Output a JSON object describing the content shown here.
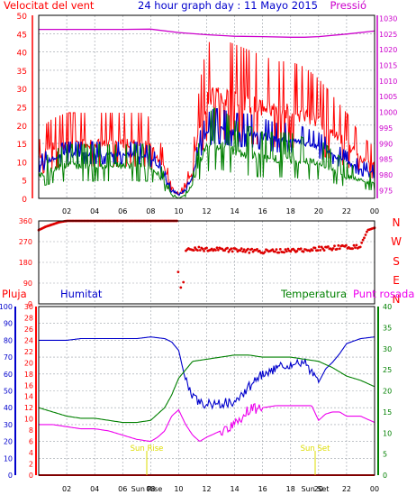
{
  "titles": {
    "left": "Velocitat del vent",
    "center": "24 hour graph day : 11 Mayo 2015",
    "right": "Pressió"
  },
  "second_panel": {
    "direction_labels": [
      "N",
      "W",
      "S",
      "E",
      "N"
    ]
  },
  "lower_headers": {
    "rain": "Pluja",
    "humidity": "Humitat",
    "temperature": "Temperatura",
    "dewpoint": "Punt rosada"
  },
  "events": {
    "sunrise": "Sun Rise",
    "sunset": "Sun Set"
  },
  "colors": {
    "wind_gust": "#ff0000",
    "wind_avg": "#0000cc",
    "wind_low": "#008000",
    "pressure": "#cc00cc",
    "direction": "#dd0000",
    "humidity": "#0000cc",
    "temperature": "#008000",
    "dewpoint": "#ee00ee",
    "event": "#dddd00",
    "grid": "#9aa0a8"
  },
  "chart_data": [
    {
      "type": "line",
      "x_ticks": [
        "02",
        "04",
        "06",
        "08",
        "10",
        "12",
        "14",
        "16",
        "18",
        "20",
        "22",
        "00"
      ],
      "y_left_ticks": [
        0,
        5,
        10,
        15,
        20,
        25,
        30,
        35,
        40,
        45,
        50
      ],
      "y_left_range": [
        0,
        50
      ],
      "y_right_ticks": [
        975,
        980,
        985,
        990,
        995,
        1000,
        1005,
        1010,
        1015,
        1020,
        1025,
        1030
      ],
      "y_right_range": [
        972.5,
        1031
      ],
      "series": [
        {
          "name": "Velocitat del vent",
          "axis": "left",
          "x": [
            0,
            0.5,
            1.0,
            2.0,
            3.0,
            4.0,
            5.0,
            6.0,
            7.0,
            7.5,
            8.0,
            8.5,
            9.0,
            9.5,
            10.0,
            10.5,
            11.0,
            11.5,
            12.0,
            12.5,
            13.0,
            14.0,
            15.0,
            16.0,
            17.0,
            18.0,
            19.0,
            20.0,
            21.0,
            22.0,
            22.5,
            23.0,
            23.5,
            24.0
          ],
          "values": [
            10,
            13,
            14,
            15,
            15,
            15,
            15,
            15,
            15,
            15,
            14,
            11,
            8,
            2,
            1,
            3,
            8,
            20,
            27,
            28,
            28,
            27,
            26,
            25,
            24,
            24,
            23,
            21,
            18,
            15,
            13,
            11,
            10,
            9
          ]
        },
        {
          "name": "wind average",
          "axis": "left",
          "x": [
            0,
            1,
            2,
            3,
            4,
            5,
            6,
            7,
            8,
            8.5,
            9,
            9.5,
            10,
            10.5,
            11,
            11.5,
            12,
            12.5,
            13,
            14,
            15,
            16,
            17,
            18,
            19,
            20,
            21,
            22,
            23,
            24
          ],
          "values": [
            9,
            11,
            12,
            12,
            12,
            12,
            12,
            12,
            11,
            9,
            6,
            2,
            1,
            2,
            6,
            14,
            18,
            19,
            19,
            18,
            18,
            17,
            16,
            16,
            15,
            14,
            12,
            10,
            8,
            7
          ]
        },
        {
          "name": "wind low",
          "axis": "left",
          "x": [
            0,
            1,
            2,
            3,
            4,
            5,
            6,
            7,
            8,
            8.5,
            9,
            9.5,
            10,
            10.5,
            11,
            11.5,
            12,
            12.5,
            13,
            14,
            15,
            16,
            17,
            18,
            19,
            20,
            21,
            22,
            23,
            24
          ],
          "values": [
            6,
            8,
            9,
            9,
            9,
            9,
            9,
            9,
            9,
            7,
            4,
            1,
            0,
            1,
            4,
            10,
            14,
            15,
            15,
            13,
            12,
            11,
            11,
            11,
            10,
            10,
            8,
            6,
            5,
            4
          ]
        },
        {
          "name": "Pressió",
          "axis": "right",
          "x": [
            0,
            2,
            4,
            6,
            8,
            10,
            12,
            14,
            16,
            18,
            19,
            20,
            22,
            24
          ],
          "values": [
            1026.5,
            1026.5,
            1026.5,
            1026.5,
            1026.6,
            1025.5,
            1024.8,
            1024.3,
            1024.2,
            1024.0,
            1024.0,
            1024.2,
            1025.0,
            1026.0
          ]
        }
      ]
    },
    {
      "type": "scatter",
      "x_ticks": [
        "02",
        "04",
        "06",
        "08",
        "10",
        "12",
        "14",
        "16",
        "18",
        "20",
        "22",
        "00"
      ],
      "y_ticks": [
        0,
        90,
        180,
        270,
        360
      ],
      "y_range": [
        0,
        360
      ],
      "series": [
        {
          "name": "wind direction",
          "x": [
            0,
            0.5,
            1.0,
            1.5,
            2.0,
            3.0,
            4.0,
            5.0,
            6.0,
            7.0,
            8.0,
            9.0,
            9.9,
            10.0,
            10.2,
            10.4,
            10.5,
            11.0,
            12.0,
            13.0,
            14.0,
            15.0,
            16.0,
            17.0,
            18.0,
            19.0,
            20.0,
            21.0,
            22.0,
            23.0,
            23.5,
            24.0
          ],
          "values": [
            320,
            335,
            345,
            355,
            360,
            360,
            360,
            360,
            360,
            360,
            360,
            360,
            360,
            40,
            80,
            100,
            230,
            240,
            237,
            235,
            232,
            230,
            228,
            230,
            232,
            235,
            240,
            243,
            247,
            250,
            320,
            330
          ]
        }
      ]
    },
    {
      "type": "line",
      "x_ticks": [
        "02",
        "04",
        "06",
        "08",
        "10",
        "12",
        "14",
        "16",
        "18",
        "20",
        "22",
        "00"
      ],
      "y_humidity_ticks": [
        0,
        10,
        20,
        30,
        40,
        50,
        60,
        70,
        80,
        90,
        100
      ],
      "y_humidity_range": [
        0,
        100
      ],
      "y_rain_ticks": [
        0,
        2,
        4,
        6,
        8,
        10,
        12,
        14,
        16,
        18,
        20,
        22,
        24,
        26,
        28,
        30
      ],
      "y_rain_range": [
        0,
        30
      ],
      "y_temp_ticks": [
        0,
        5,
        10,
        15,
        20,
        25,
        30,
        35,
        40
      ],
      "y_temp_range": [
        0,
        40
      ],
      "series": [
        {
          "name": "Humitat",
          "axis": "humidity",
          "x": [
            0,
            1,
            2,
            3,
            4,
            5,
            6,
            7,
            8,
            9,
            9.5,
            10,
            10.5,
            11,
            11.5,
            12,
            13,
            14,
            15,
            16,
            17,
            18,
            19,
            19.5,
            20,
            20.5,
            21,
            21.5,
            22,
            23,
            24
          ],
          "values": [
            80,
            80,
            80,
            81,
            81,
            81,
            81,
            81,
            82,
            81,
            79,
            74,
            56,
            46,
            43,
            42,
            42,
            44,
            52,
            60,
            63,
            66,
            67,
            60,
            55,
            63,
            67,
            72,
            78,
            81,
            82
          ]
        },
        {
          "name": "Pluja",
          "axis": "rain",
          "x": [
            0,
            6,
            12,
            18,
            24
          ],
          "values": [
            0,
            0,
            0,
            0,
            0
          ]
        },
        {
          "name": "Temperatura",
          "axis": "temp",
          "x": [
            0,
            1,
            2,
            3,
            4,
            5,
            6,
            7,
            8,
            9,
            9.5,
            10,
            10.5,
            11,
            12,
            13,
            14,
            15,
            16,
            17,
            18,
            19,
            20,
            21,
            22,
            23,
            24
          ],
          "values": [
            16,
            15,
            14,
            13.5,
            13.5,
            13,
            12.5,
            12.5,
            13,
            16,
            19,
            23,
            25,
            27,
            27.5,
            28,
            28.5,
            28.5,
            28,
            28,
            28,
            27.5,
            27,
            25.5,
            23.5,
            22.5,
            21
          ]
        },
        {
          "name": "Punt rosada",
          "axis": "temp",
          "x": [
            0,
            1,
            2,
            3,
            4,
            5,
            6,
            7,
            8,
            8.5,
            9,
            9.5,
            10,
            10.5,
            11,
            11.5,
            12,
            13,
            14,
            15,
            16,
            17,
            18,
            19,
            19.5,
            20,
            20.5,
            21,
            21.5,
            22,
            23,
            24
          ],
          "values": [
            12,
            12,
            11.5,
            11,
            11,
            10.5,
            9.5,
            8.5,
            8,
            9,
            10.5,
            14,
            15.5,
            12,
            9.5,
            8,
            9,
            10.5,
            12,
            15.5,
            16,
            16.5,
            16.5,
            16.5,
            16.5,
            13,
            14.5,
            15,
            15,
            14,
            14,
            12.5
          ]
        }
      ]
    }
  ]
}
